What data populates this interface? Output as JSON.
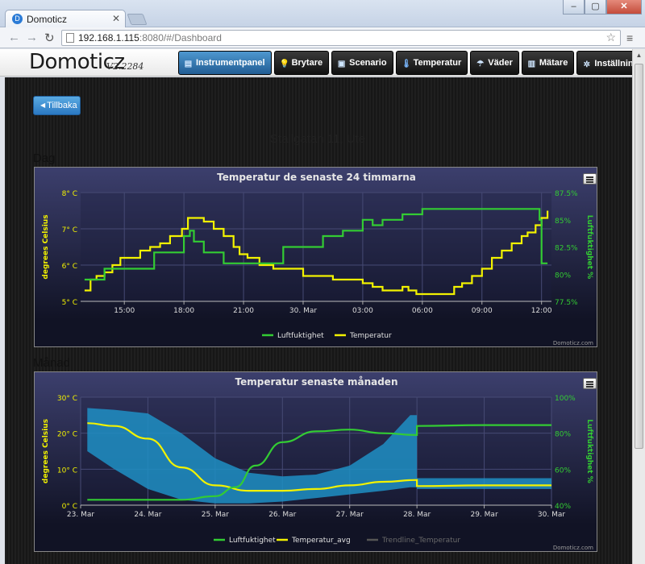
{
  "browser": {
    "tab_title": "Domoticz",
    "url_host": "192.168.1.115",
    "url_rest": ":8080/#/Dashboard"
  },
  "app": {
    "logo": "Domoticz",
    "version": "V2.2284",
    "nav": [
      {
        "label": "Instrumentpanel",
        "icon": "dashboard-icon",
        "active": true
      },
      {
        "label": "Brytare",
        "icon": "bulb-icon"
      },
      {
        "label": "Scenario",
        "icon": "scene-icon"
      },
      {
        "label": "Temperatur",
        "icon": "thermometer-icon"
      },
      {
        "label": "Väder",
        "icon": "weather-icon"
      },
      {
        "label": "Mätare",
        "icon": "meter-icon"
      },
      {
        "label": "Inställningar",
        "icon": "tools-icon"
      }
    ]
  },
  "page": {
    "back_label": "Tillbaka",
    "title": "Stallgatan 11, Ute",
    "section_day": "Dag",
    "section_month": "Månad"
  },
  "colors": {
    "temperature": "#f2f200",
    "humidity": "#33cc33",
    "range_fill": "#1f8fc4",
    "grid": "#464a74"
  },
  "chart_data": [
    {
      "type": "line",
      "title": "Temperatur de senaste 24 timmarna",
      "ylabel": "degrees Celsius",
      "y2label": "Luftfuktighet %",
      "xticks": [
        "15:00",
        "18:00",
        "21:00",
        "30. Mar",
        "03:00",
        "06:00",
        "09:00",
        "12:00"
      ],
      "yticks": [
        "5° C",
        "6° C",
        "7° C",
        "8° C"
      ],
      "y2ticks": [
        "77.5%",
        "80%",
        "82.5%",
        "85%",
        "87.5%"
      ],
      "xlim": [
        12.8,
        36.5
      ],
      "ylim": [
        5,
        8
      ],
      "y2lim": [
        77.5,
        87.5
      ],
      "legend": [
        "Luftfuktighet",
        "Temperatur"
      ],
      "credit": "Domoticz.com",
      "series": [
        {
          "name": "Temperatur",
          "axis": "y",
          "x": [
            13,
            13.3,
            13.6,
            14.0,
            14.4,
            14.8,
            15.3,
            15.8,
            16.3,
            16.8,
            17.3,
            17.9,
            18.2,
            18.6,
            19.0,
            19.5,
            20.0,
            20.5,
            20.8,
            21.2,
            21.8,
            22.5,
            23.2,
            24.0,
            24.8,
            25.5,
            26.3,
            27.0,
            27.5,
            28.0,
            28.5,
            29.0,
            29.3,
            29.7,
            30.3,
            31.0,
            31.6,
            32.0,
            32.5,
            33.0,
            33.5,
            34.0,
            34.5,
            35.0,
            35.3,
            35.7,
            36.0,
            36.3
          ],
          "values": [
            5.3,
            5.6,
            5.7,
            5.8,
            6.0,
            6.2,
            6.2,
            6.4,
            6.5,
            6.6,
            6.8,
            7.0,
            7.3,
            7.3,
            7.2,
            7.0,
            6.8,
            6.5,
            6.3,
            6.2,
            6.0,
            5.9,
            5.9,
            5.7,
            5.7,
            5.6,
            5.6,
            5.5,
            5.4,
            5.3,
            5.3,
            5.4,
            5.3,
            5.2,
            5.2,
            5.2,
            5.4,
            5.5,
            5.7,
            5.9,
            6.2,
            6.4,
            6.6,
            6.8,
            6.9,
            7.1,
            7.3,
            7.5
          ]
        },
        {
          "name": "Luftfuktighet",
          "axis": "y2",
          "x": [
            13,
            13.8,
            14.0,
            15.0,
            16.0,
            16.5,
            17.3,
            18.0,
            18.3,
            18.5,
            19.0,
            19.8,
            20.0,
            20.5,
            21.0,
            22.0,
            23.0,
            24.0,
            25.0,
            26.0,
            27.0,
            27.5,
            28.0,
            29.0,
            29.5,
            30.0,
            31.0,
            33.0,
            34.0,
            35.0,
            35.6,
            35.9,
            36.0,
            36.3
          ],
          "values": [
            79.5,
            79.5,
            80.5,
            80.5,
            80.5,
            82.0,
            82.0,
            83.5,
            84.0,
            83.0,
            82.0,
            82.0,
            81.0,
            81.0,
            81.0,
            81.0,
            82.5,
            82.5,
            83.5,
            84.0,
            85.0,
            84.5,
            85.0,
            85.5,
            85.5,
            86.0,
            86.0,
            86.0,
            86.0,
            86.0,
            86.0,
            85.0,
            81.0,
            81.0
          ]
        }
      ]
    },
    {
      "type": "line",
      "title": "Temperatur senaste månaden",
      "ylabel": "degrees Celsius",
      "y2label": "Luftfuktighet %",
      "xticks": [
        "23. Mar",
        "24. Mar",
        "25. Mar",
        "26. Mar",
        "27. Mar",
        "28. Mar",
        "29. Mar",
        "30. Mar"
      ],
      "yticks": [
        "0° C",
        "10° C",
        "20° C",
        "30° C"
      ],
      "y2ticks": [
        "40%",
        "60%",
        "80%",
        "100%"
      ],
      "xlim": [
        23,
        30
      ],
      "ylim": [
        0,
        30
      ],
      "y2lim": [
        40,
        100
      ],
      "legend": [
        "Luftfuktighet",
        "Temperatur_avg",
        "Trendline_Temperatur"
      ],
      "credit": "Domoticz.com",
      "range": {
        "x": [
          23.1,
          23.5,
          24.0,
          24.5,
          25.0,
          25.5,
          26.0,
          26.5,
          27.0,
          27.5,
          27.9,
          28.0,
          28.0,
          29.0,
          30.0
        ],
        "high": [
          27.0,
          26.5,
          25.5,
          20.0,
          13.0,
          9.0,
          8.0,
          8.5,
          11.0,
          17.0,
          25.0,
          25.0,
          7.5,
          7.5,
          7.5
        ],
        "low": [
          15.0,
          10.0,
          4.5,
          1.5,
          0.5,
          0.5,
          1.0,
          2.0,
          3.0,
          4.0,
          5.0,
          5.0,
          4.5,
          4.5,
          4.5
        ]
      },
      "series": [
        {
          "name": "Temperatur_avg",
          "axis": "y",
          "x": [
            23.1,
            23.5,
            24.0,
            24.5,
            25.0,
            25.5,
            26.0,
            26.5,
            27.0,
            27.5,
            28.0,
            28.0,
            29.0,
            30.0
          ],
          "values": [
            22.8,
            22.0,
            18.5,
            10.5,
            5.5,
            4.0,
            4.0,
            4.5,
            5.5,
            6.5,
            7.0,
            5.3,
            5.5,
            5.5
          ]
        },
        {
          "name": "Luftfuktighet",
          "axis": "y2",
          "x": [
            23.1,
            24.0,
            24.5,
            25.0,
            25.3,
            25.6,
            26.0,
            26.5,
            27.0,
            27.5,
            28.0,
            28.0,
            29.0,
            30.0
          ],
          "values": [
            43,
            43,
            43,
            45,
            50,
            62,
            75,
            81,
            82,
            80,
            79,
            84,
            84.5,
            84.5
          ]
        }
      ]
    }
  ]
}
